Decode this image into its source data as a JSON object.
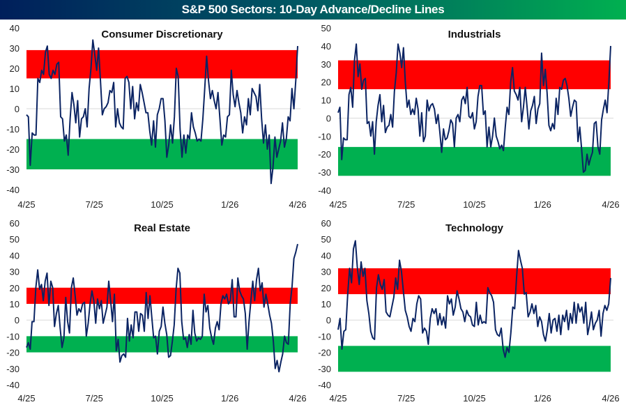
{
  "header": {
    "title": "S&P 500 Sectors: 10-Day Advance/Decline Lines"
  },
  "colors": {
    "overbought": "#ff0000",
    "oversold": "#00b050",
    "line": "#0b2463",
    "zero": "#d9d9d9"
  },
  "chart_data": [
    {
      "type": "line",
      "title": "Consumer Discretionary",
      "xlabel": "",
      "ylabel": "",
      "xticks": [
        "4/25",
        "7/25",
        "10/25",
        "1/26",
        "4/26"
      ],
      "yticks": [
        40,
        30,
        20,
        10,
        0,
        -10,
        -20,
        -30,
        -40
      ],
      "ylim": [
        -40,
        40
      ],
      "grid": false,
      "bands": [
        {
          "name": "overbought",
          "from": 15,
          "to": 29
        },
        {
          "name": "oversold",
          "from": -30,
          "to": -15
        }
      ],
      "series": [
        {
          "name": "Consumer Discretionary",
          "values": [
            -3,
            -4,
            -28,
            -12,
            -13,
            -13,
            15,
            13,
            19,
            17,
            28,
            31,
            17,
            15,
            19,
            17,
            22,
            23,
            -4,
            -5,
            -16,
            -13,
            -23,
            -5,
            8,
            2,
            -7,
            4,
            -14,
            -5,
            -4,
            0,
            -9,
            10,
            20,
            34,
            27,
            19,
            30,
            14,
            -3,
            0,
            1,
            3,
            9,
            8,
            13,
            -9,
            0,
            -7,
            -9,
            -10,
            15,
            16,
            13,
            0,
            11,
            -5,
            3,
            -1,
            12,
            8,
            3,
            -2,
            -2,
            -11,
            -18,
            -6,
            -19,
            -3,
            0,
            5,
            5,
            -6,
            -24,
            -18,
            -8,
            -17,
            -4,
            20,
            16,
            -10,
            -24,
            -13,
            -22,
            -13,
            -15,
            -2,
            -9,
            -12,
            -16,
            -15,
            -16,
            -5,
            10,
            26,
            14,
            5,
            9,
            4,
            0,
            8,
            -5,
            -18,
            -13,
            -14,
            -4,
            -3,
            19,
            7,
            1,
            9,
            3,
            -2,
            -12,
            -4,
            -8,
            5,
            -3,
            10,
            8,
            6,
            -1,
            12,
            -5,
            -17,
            -8,
            -20,
            -13,
            -37,
            -29,
            -14,
            -24,
            -20,
            -16,
            -7,
            -19,
            -15,
            -4,
            -6,
            10,
            0,
            14,
            31
          ]
        }
      ]
    },
    {
      "type": "line",
      "title": "Industrials",
      "xlabel": "",
      "ylabel": "",
      "xticks": [
        "4/25",
        "7/25",
        "10/25",
        "1/26",
        "4/26"
      ],
      "yticks": [
        50,
        40,
        30,
        20,
        10,
        0,
        -10,
        -20,
        -30,
        -40
      ],
      "ylim": [
        -40,
        50
      ],
      "grid": false,
      "bands": [
        {
          "name": "overbought",
          "from": 16,
          "to": 32
        },
        {
          "name": "oversold",
          "from": -32,
          "to": -16
        }
      ],
      "series": [
        {
          "name": "Industrials",
          "values": [
            3,
            6,
            -23,
            -11,
            -12,
            -12,
            13,
            17,
            6,
            32,
            41,
            23,
            30,
            16,
            21,
            22,
            -3,
            -2,
            -10,
            -2,
            -20,
            -2,
            7,
            13,
            -2,
            7,
            -8,
            -5,
            -4,
            2,
            -5,
            15,
            25,
            41,
            36,
            28,
            39,
            20,
            6,
            10,
            2,
            5,
            2,
            11,
            5,
            -10,
            3,
            -13,
            -10,
            10,
            4,
            7,
            8,
            5,
            -3,
            2,
            -8,
            -19,
            -6,
            -12,
            -11,
            -7,
            -1,
            -3,
            -16,
            0,
            2,
            -2,
            10,
            12,
            8,
            17,
            1,
            0,
            3,
            -6,
            -2,
            12,
            18,
            18,
            2,
            4,
            -16,
            -5,
            -16,
            -10,
            0,
            -10,
            -13,
            -17,
            -15,
            -18,
            -5,
            6,
            2,
            20,
            28,
            15,
            13,
            10,
            17,
            -2,
            6,
            17,
            6,
            -6,
            4,
            7,
            12,
            -3,
            5,
            8,
            36,
            18,
            27,
            14,
            -4,
            -7,
            -3,
            -6,
            11,
            2,
            17,
            16,
            21,
            22,
            18,
            11,
            1,
            6,
            10,
            9,
            -13,
            -5,
            -17,
            -30,
            -29,
            -20,
            -26,
            -22,
            -19,
            -3,
            -2,
            -16,
            -20,
            -1,
            5,
            10,
            3,
            20,
            40
          ]
        }
      ]
    },
    {
      "type": "line",
      "title": "Real Estate",
      "xlabel": "",
      "ylabel": "",
      "xticks": [
        "4/25",
        "7/25",
        "10/25",
        "1/26",
        "4/26"
      ],
      "yticks": [
        60,
        50,
        40,
        30,
        20,
        10,
        0,
        -10,
        -20,
        -30,
        -40
      ],
      "ylim": [
        -40,
        60
      ],
      "grid": false,
      "bands": [
        {
          "name": "overbought",
          "from": 10,
          "to": 20
        },
        {
          "name": "oversold",
          "from": -20,
          "to": -10
        }
      ],
      "series": [
        {
          "name": "Real Estate",
          "values": [
            -17,
            -14,
            -18,
            -1,
            -1,
            20,
            31,
            19,
            22,
            12,
            24,
            29,
            9,
            24,
            20,
            -4,
            4,
            9,
            -5,
            -17,
            -11,
            14,
            -1,
            -8,
            20,
            26,
            15,
            3,
            7,
            5,
            10,
            11,
            -10,
            -2,
            10,
            18,
            12,
            -2,
            13,
            7,
            12,
            -2,
            3,
            8,
            24,
            12,
            -1,
            16,
            -19,
            -12,
            -26,
            -22,
            -21,
            -23,
            1,
            -13,
            -3,
            -11,
            5,
            5,
            -7,
            4,
            3,
            -7,
            17,
            1,
            15,
            2,
            -11,
            -10,
            -21,
            -7,
            -4,
            8,
            -2,
            -9,
            -23,
            -22,
            -13,
            -3,
            19,
            32,
            29,
            -1,
            -12,
            -11,
            -17,
            -9,
            -15,
            6,
            -8,
            -13,
            -11,
            -12,
            -10,
            16,
            5,
            9,
            -5,
            -11,
            -15,
            -5,
            -1,
            -6,
            10,
            15,
            13,
            16,
            10,
            12,
            25,
            2,
            2,
            26,
            18,
            15,
            13,
            4,
            -18,
            -1,
            12,
            24,
            12,
            25,
            32,
            18,
            23,
            8,
            16,
            10,
            3,
            -2,
            -13,
            -30,
            -25,
            -32,
            -26,
            -21,
            -10,
            -14,
            -15,
            10,
            21,
            38,
            42,
            47
          ]
        }
      ]
    },
    {
      "type": "line",
      "title": "Technology",
      "xlabel": "",
      "ylabel": "",
      "xticks": [
        "4/25",
        "7/25",
        "10/25",
        "1/26",
        "4/26"
      ],
      "yticks": [
        60,
        50,
        40,
        30,
        20,
        10,
        0,
        -10,
        -20,
        -30,
        -40
      ],
      "ylim": [
        -40,
        60
      ],
      "grid": false,
      "bands": [
        {
          "name": "overbought",
          "from": 16,
          "to": 32
        },
        {
          "name": "oversold",
          "from": -32,
          "to": -16
        }
      ],
      "series": [
        {
          "name": "Technology",
          "values": [
            -6,
            1,
            -18,
            -7,
            -6,
            16,
            32,
            23,
            44,
            49,
            33,
            22,
            36,
            27,
            32,
            12,
            4,
            -7,
            -11,
            -12,
            20,
            28,
            22,
            19,
            25,
            5,
            3,
            2,
            8,
            14,
            26,
            19,
            37,
            30,
            18,
            6,
            2,
            -4,
            -7,
            1,
            -1,
            10,
            15,
            13,
            -8,
            -5,
            -7,
            -15,
            1,
            7,
            4,
            7,
            -3,
            4,
            -3,
            2,
            -5,
            15,
            10,
            13,
            3,
            8,
            18,
            13,
            7,
            5,
            -1,
            6,
            3,
            2,
            -3,
            -4,
            11,
            -3,
            3,
            -2,
            -1,
            -2,
            20,
            17,
            15,
            11,
            -6,
            -9,
            -10,
            -5,
            -18,
            -23,
            -17,
            -20,
            -8,
            8,
            7,
            27,
            43,
            37,
            32,
            16,
            17,
            2,
            5,
            10,
            4,
            9,
            -4,
            2,
            -1,
            -9,
            -13,
            -6,
            4,
            -8,
            0,
            1,
            -7,
            3,
            -9,
            3,
            -1,
            6,
            -6,
            4,
            -2,
            11,
            -2,
            10,
            5,
            8,
            -2,
            11,
            -9,
            -3,
            5,
            -6,
            -2,
            0,
            6,
            -10,
            4,
            9,
            6,
            10,
            26
          ]
        }
      ]
    }
  ]
}
